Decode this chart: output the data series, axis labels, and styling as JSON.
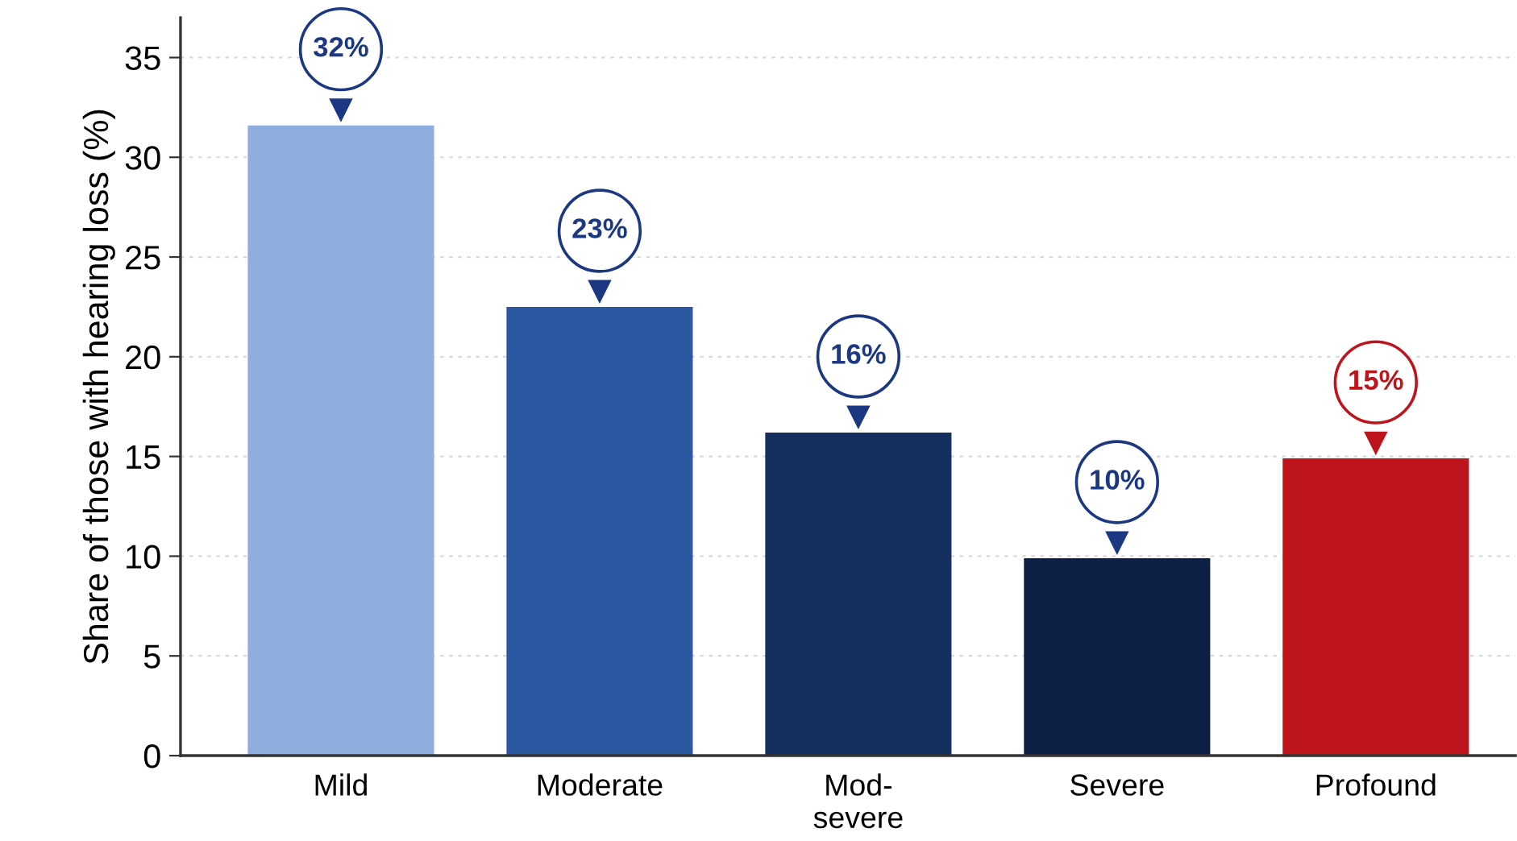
{
  "chart_data": {
    "type": "bar",
    "ylabel": "Share of those with hearing loss (%)",
    "categories": [
      "Mild",
      "Moderate",
      "Mod-\nsevere",
      "Severe",
      "Profound"
    ],
    "values": [
      31.6,
      22.5,
      16.2,
      9.9,
      14.9
    ],
    "colors": [
      "#8eacdc",
      "#2c58a2",
      "#15305f",
      "#0d1f44",
      "#be141b"
    ],
    "value_labels": [
      "32%",
      "23%",
      "16%",
      "10%",
      "15%"
    ],
    "ylim": [
      0,
      37
    ],
    "yticks": [
      0,
      5,
      10,
      15,
      20,
      25,
      30,
      35
    ],
    "grid": "y"
  }
}
